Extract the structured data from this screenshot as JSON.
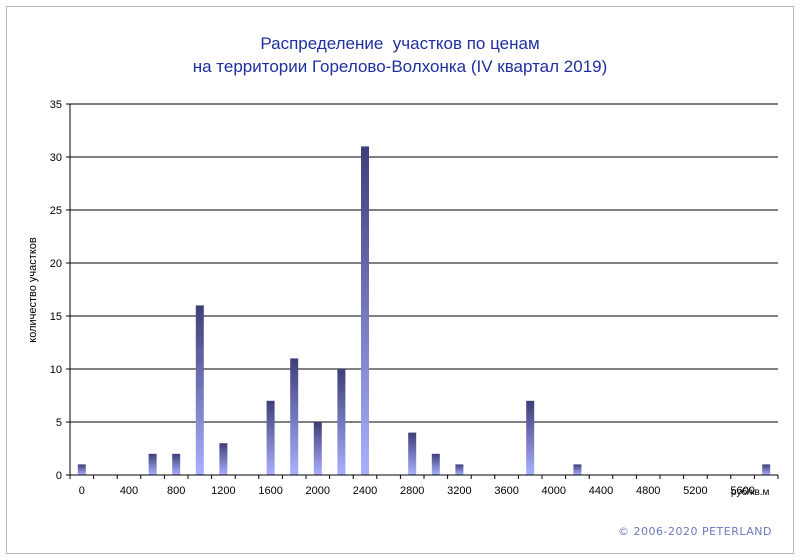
{
  "chart_data": {
    "type": "bar",
    "title_lines": [
      "Распределение  участков по ценам",
      "на территории Горелово-Волхонка (IV квартал 2019)"
    ],
    "xlabel": "руб/кв.м",
    "ylabel": "количество участков",
    "ylim": [
      0,
      35
    ],
    "y_ticks": [
      0,
      5,
      10,
      15,
      20,
      25,
      30,
      35
    ],
    "x_tick_labels": [
      "0",
      "400",
      "800",
      "1200",
      "1600",
      "2000",
      "2400",
      "2800",
      "3200",
      "3600",
      "4000",
      "4400",
      "4800",
      "5200",
      "5600"
    ],
    "categories": [
      0,
      200,
      400,
      600,
      800,
      1000,
      1200,
      1400,
      1600,
      1800,
      2000,
      2200,
      2400,
      2600,
      2800,
      3000,
      3200,
      3400,
      3600,
      3800,
      4000,
      4200,
      4400,
      4600,
      4800,
      5000,
      5200,
      5400,
      5600,
      5800
    ],
    "values": [
      1,
      0,
      0,
      2,
      2,
      16,
      3,
      0,
      7,
      11,
      5,
      10,
      31,
      0,
      4,
      2,
      1,
      0,
      0,
      7,
      0,
      1,
      0,
      0,
      0,
      0,
      0,
      0,
      0,
      1
    ],
    "grid": true,
    "colors": {
      "bar_top": "#3e3f78",
      "bar_bottom": "#aab0ff",
      "title": "#1f2f9e",
      "grid": "#000000"
    }
  },
  "copyright": "© 2006-2020  PETERLAND"
}
